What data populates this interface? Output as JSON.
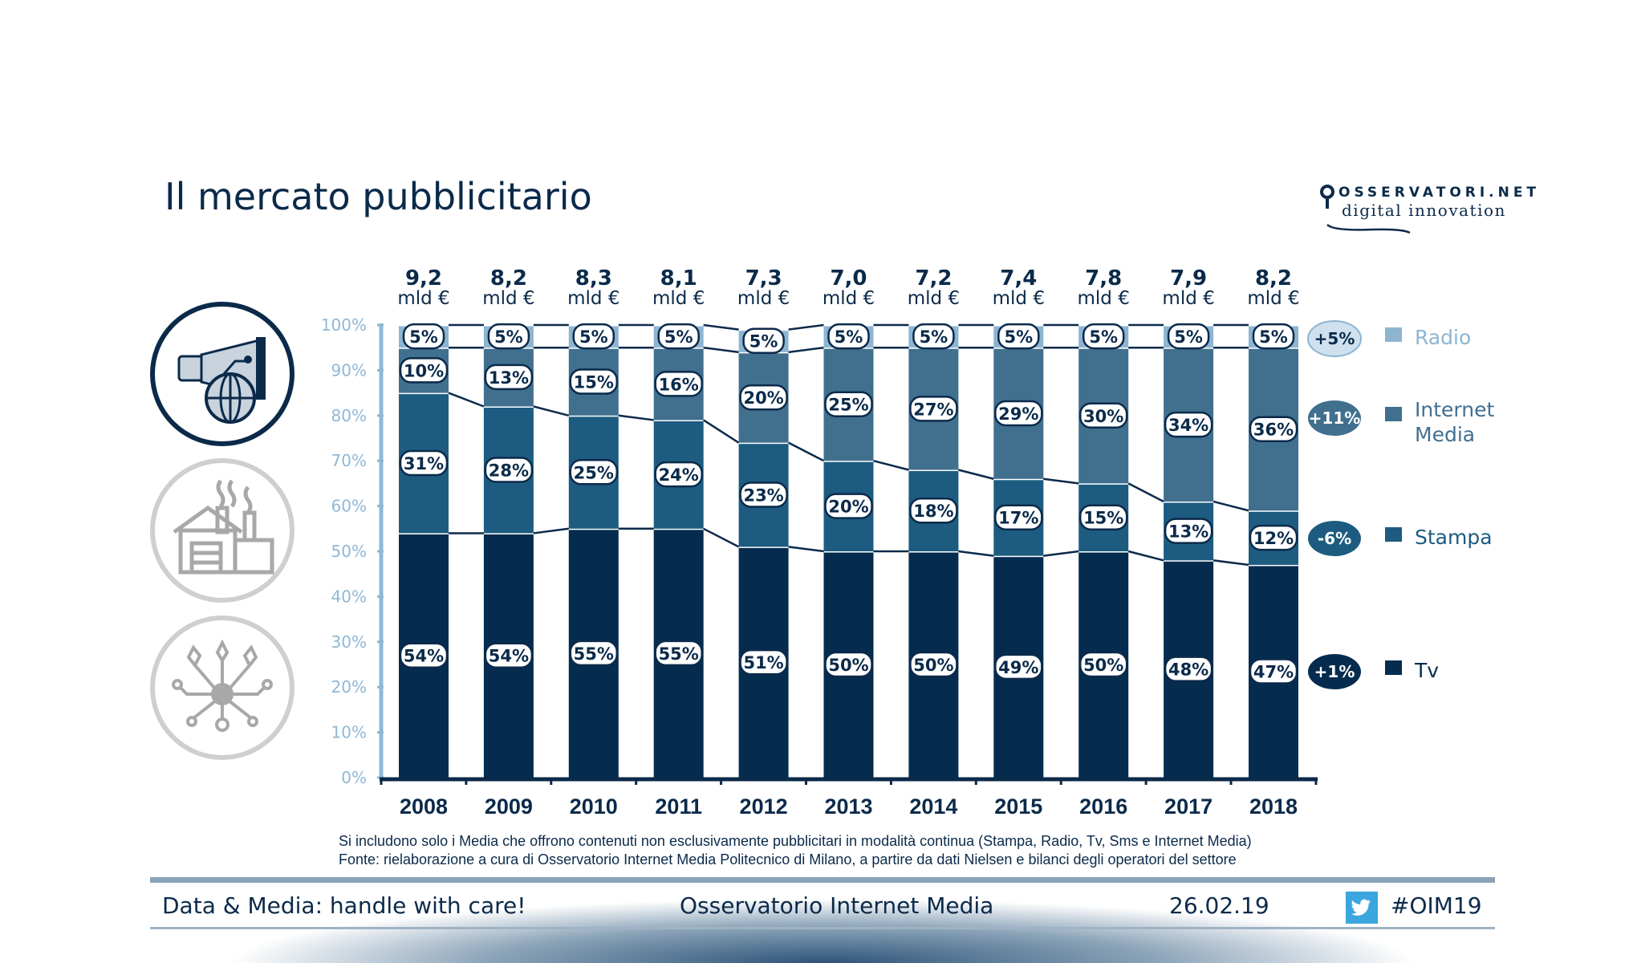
{
  "title": "Il mercato pubblicitario",
  "logo": {
    "line1": "OSSERVATORI.NET",
    "line2": "digital innovation"
  },
  "colors": {
    "tv": "#052c4f",
    "stampa": "#1d5c80",
    "internet": "#41708f",
    "radio": "#8db5d2",
    "axis_labels": "#8fb8d6",
    "text": "#0b2a4a"
  },
  "side_icons": [
    "megaphone-globe-icon",
    "factory-house-icon",
    "network-ideas-icon"
  ],
  "chart_data": {
    "type": "bar",
    "stacked": true,
    "normalized": true,
    "categories": [
      "2008",
      "2009",
      "2010",
      "2011",
      "2012",
      "2013",
      "2014",
      "2015",
      "2016",
      "2017",
      "2018"
    ],
    "totals": [
      "9,2",
      "8,2",
      "8,3",
      "8,1",
      "7,3",
      "7,0",
      "7,2",
      "7,4",
      "7,8",
      "7,9",
      "8,2"
    ],
    "totals_unit": "mld €",
    "series": [
      {
        "name": "Tv",
        "color": "#052c4f",
        "change": "+1%",
        "values": [
          54,
          54,
          55,
          55,
          51,
          50,
          50,
          49,
          50,
          48,
          47
        ]
      },
      {
        "name": "Stampa",
        "color": "#1d5c80",
        "change": "-6%",
        "values": [
          31,
          28,
          25,
          24,
          23,
          20,
          18,
          17,
          15,
          13,
          12
        ]
      },
      {
        "name": "Internet Media",
        "color": "#41708f",
        "change": "+11%",
        "values": [
          10,
          13,
          15,
          16,
          20,
          25,
          27,
          29,
          30,
          34,
          36
        ]
      },
      {
        "name": "Radio",
        "color": "#8db5d2",
        "change": "+5%",
        "values": [
          5,
          5,
          5,
          5,
          5,
          5,
          5,
          5,
          5,
          5,
          5
        ]
      }
    ],
    "yticks": [
      "0%",
      "10%",
      "20%",
      "30%",
      "40%",
      "50%",
      "60%",
      "70%",
      "80%",
      "90%",
      "100%"
    ],
    "ylim": [
      0,
      100
    ],
    "legend_position": "right",
    "legend": [
      {
        "label_lines": [
          "Radio"
        ],
        "color": "#8db5d2",
        "text_color": "#8db5d2"
      },
      {
        "label_lines": [
          "Internet",
          "Media"
        ],
        "color": "#41708f",
        "text_color": "#41708f"
      },
      {
        "label_lines": [
          "Stampa"
        ],
        "color": "#1d5c80",
        "text_color": "#1d5c80"
      },
      {
        "label_lines": [
          "Tv"
        ],
        "color": "#052c4f",
        "text_color": "#052c4f"
      }
    ]
  },
  "footnotes": [
    "Si includono solo i Media che offrono contenuti non esclusivamente pubblicitari in modalità continua (Stampa, Radio, Tv, Sms e  Internet Media)",
    "Fonte: rielaborazione a cura di Osservatorio Internet Media Politecnico di Milano, a partire da dati Nielsen e bilanci degli operatori del settore"
  ],
  "footer": {
    "tagline": "Data & Media: handle with care!",
    "org": "Osservatorio Internet Media",
    "date": "26.02.19",
    "hashtag": "#OIM19"
  }
}
